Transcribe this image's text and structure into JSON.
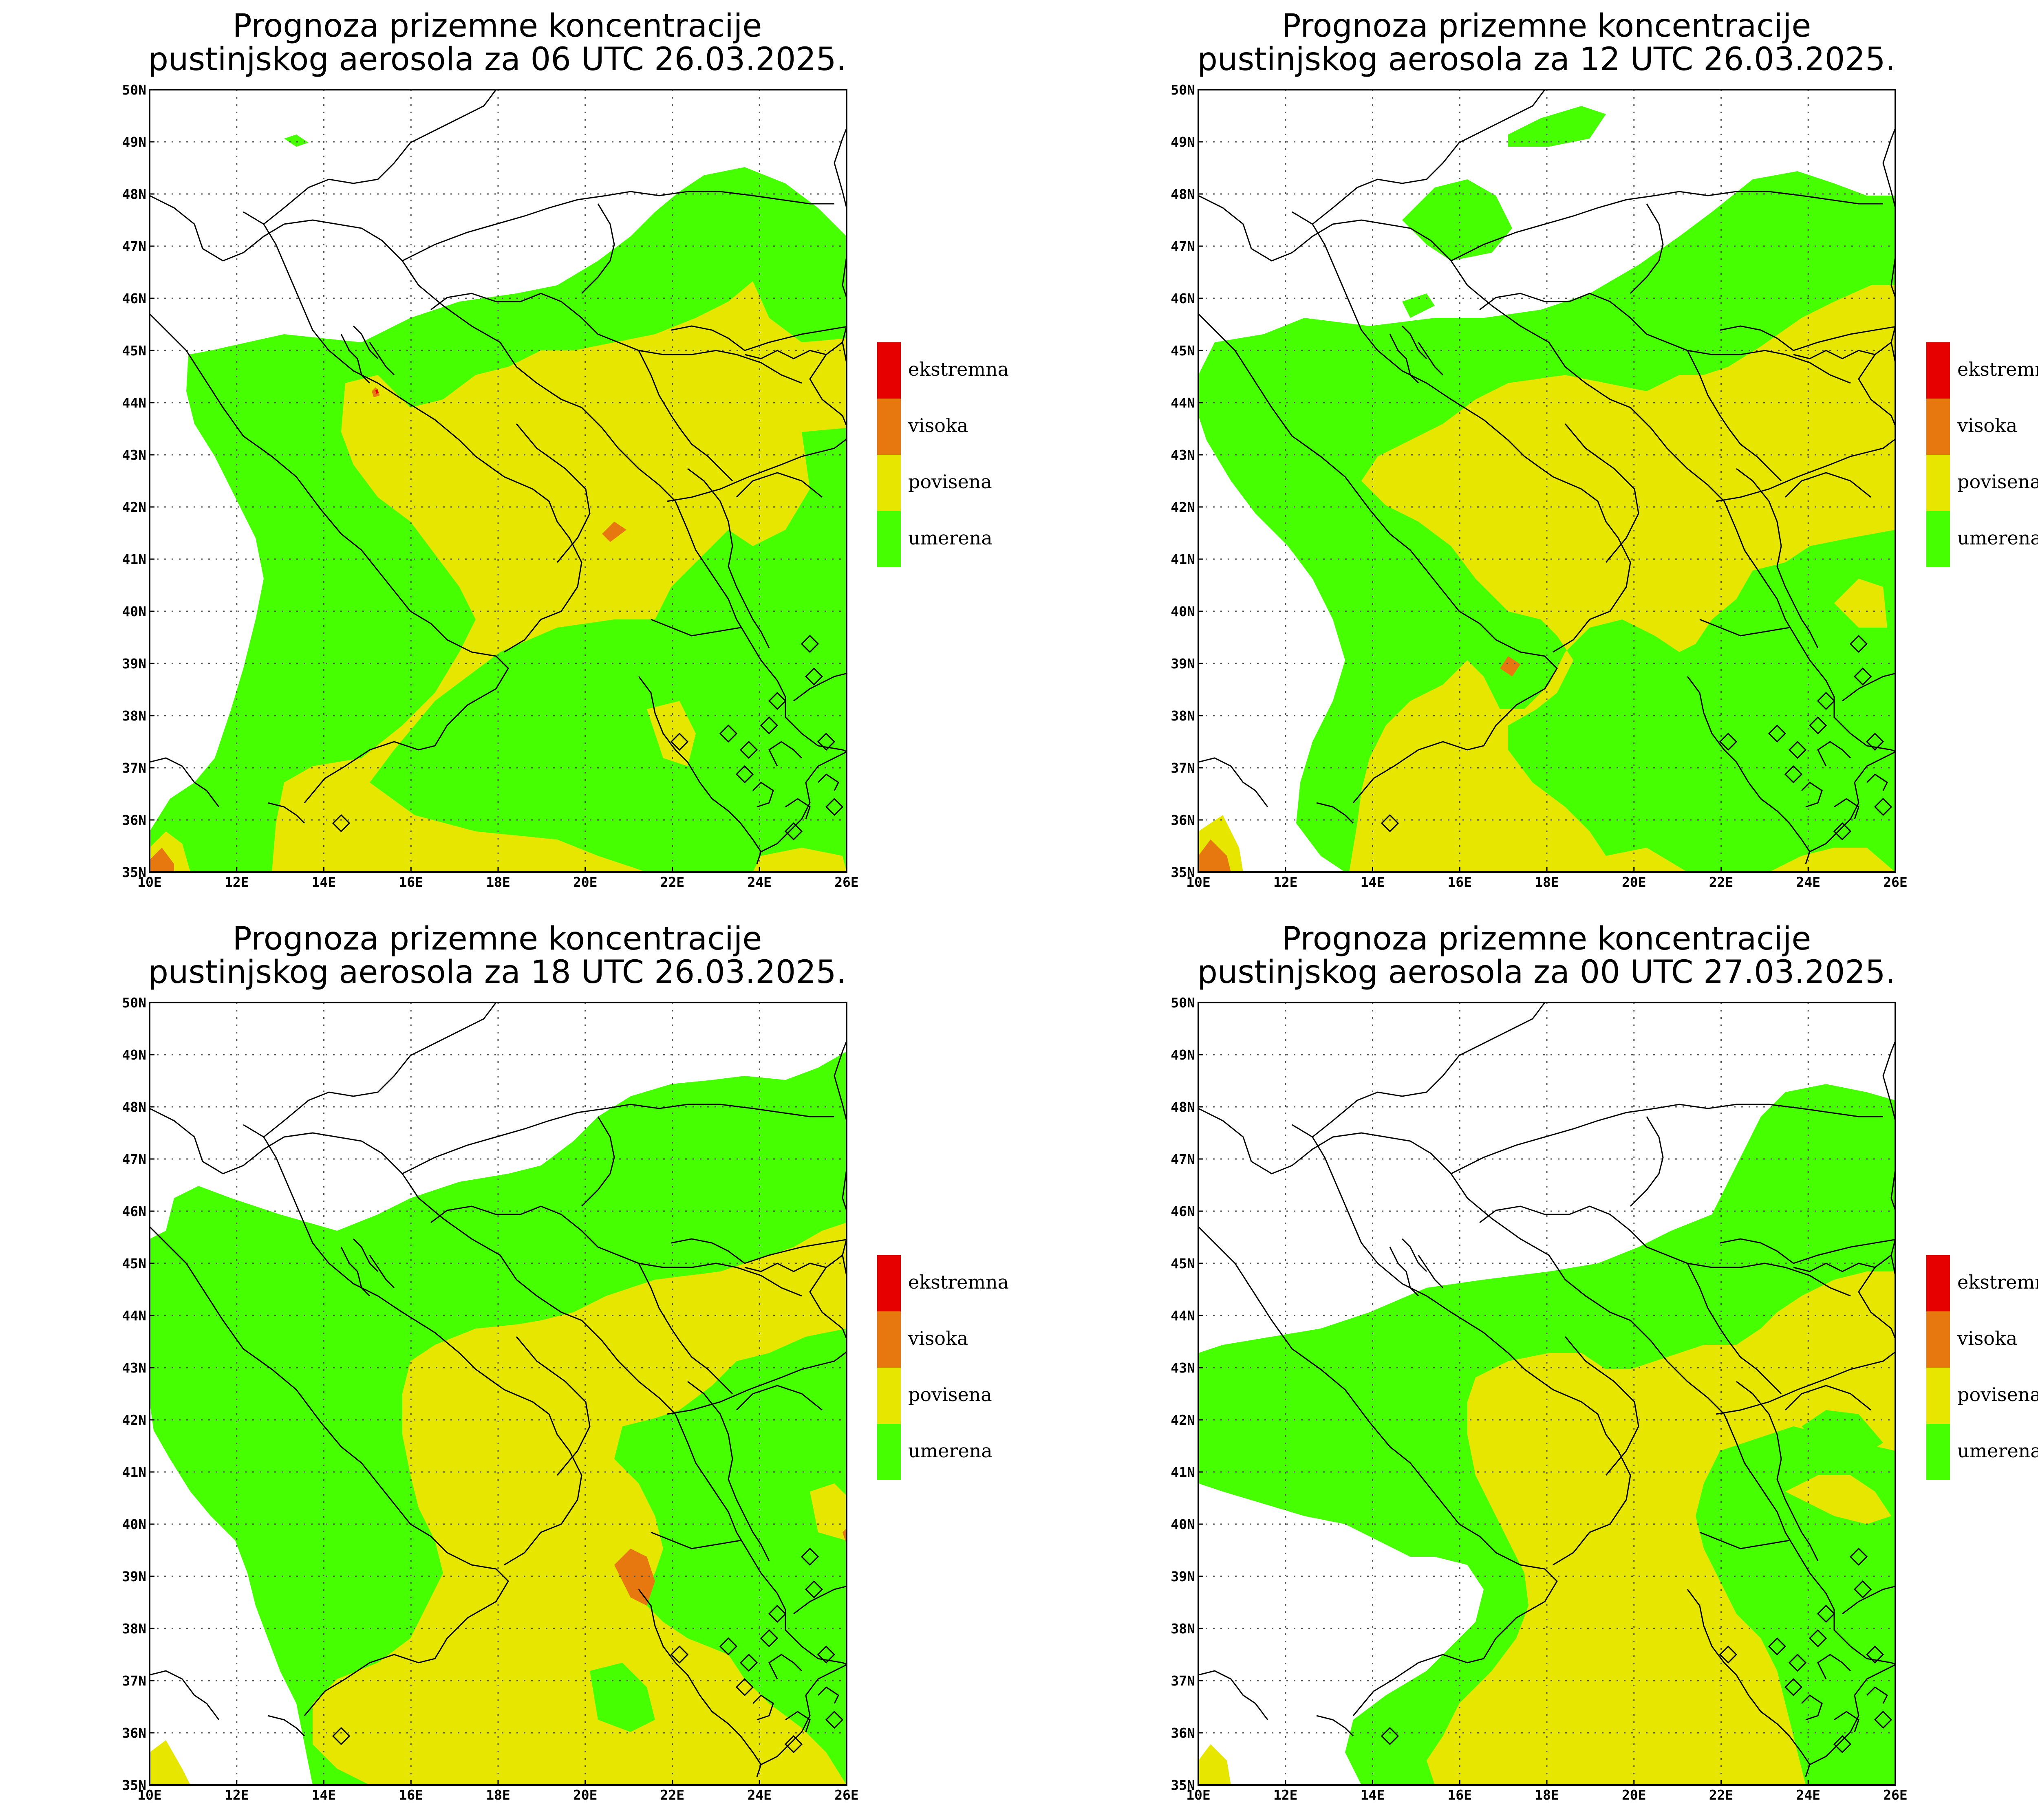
{
  "panels": [
    {
      "title_line1": "Prognoza prizemne koncentracije",
      "title_line2": "pustinjskog aerosola za 06 UTC 26.03.2025."
    },
    {
      "title_line1": "Prognoza prizemne koncentracije",
      "title_line2": "pustinjskog aerosola za 12 UTC 26.03.2025."
    },
    {
      "title_line1": "Prognoza prizemne koncentracije",
      "title_line2": "pustinjskog aerosola za 18 UTC 26.03.2025."
    },
    {
      "title_line1": "Prognoza prizemne koncentracije",
      "title_line2": "pustinjskog aerosola za 00 UTC 27.03.2025."
    }
  ],
  "axes": {
    "lon_ticks": [
      "10E",
      "12E",
      "14E",
      "16E",
      "18E",
      "20E",
      "22E",
      "24E",
      "26E"
    ],
    "lat_ticks": [
      "35N",
      "36N",
      "37N",
      "38N",
      "39N",
      "40N",
      "41N",
      "42N",
      "43N",
      "44N",
      "45N",
      "46N",
      "47N",
      "48N",
      "49N",
      "50N"
    ],
    "lon_range": [
      10,
      26
    ],
    "lat_range": [
      35,
      50
    ]
  },
  "legend": [
    {
      "label": "ekstremna",
      "color": "#e60000"
    },
    {
      "label": "visoka",
      "color": "#e6780f"
    },
    {
      "label": "povisena",
      "color": "#e6e600"
    },
    {
      "label": "umerena",
      "color": "#46ff00"
    }
  ]
}
